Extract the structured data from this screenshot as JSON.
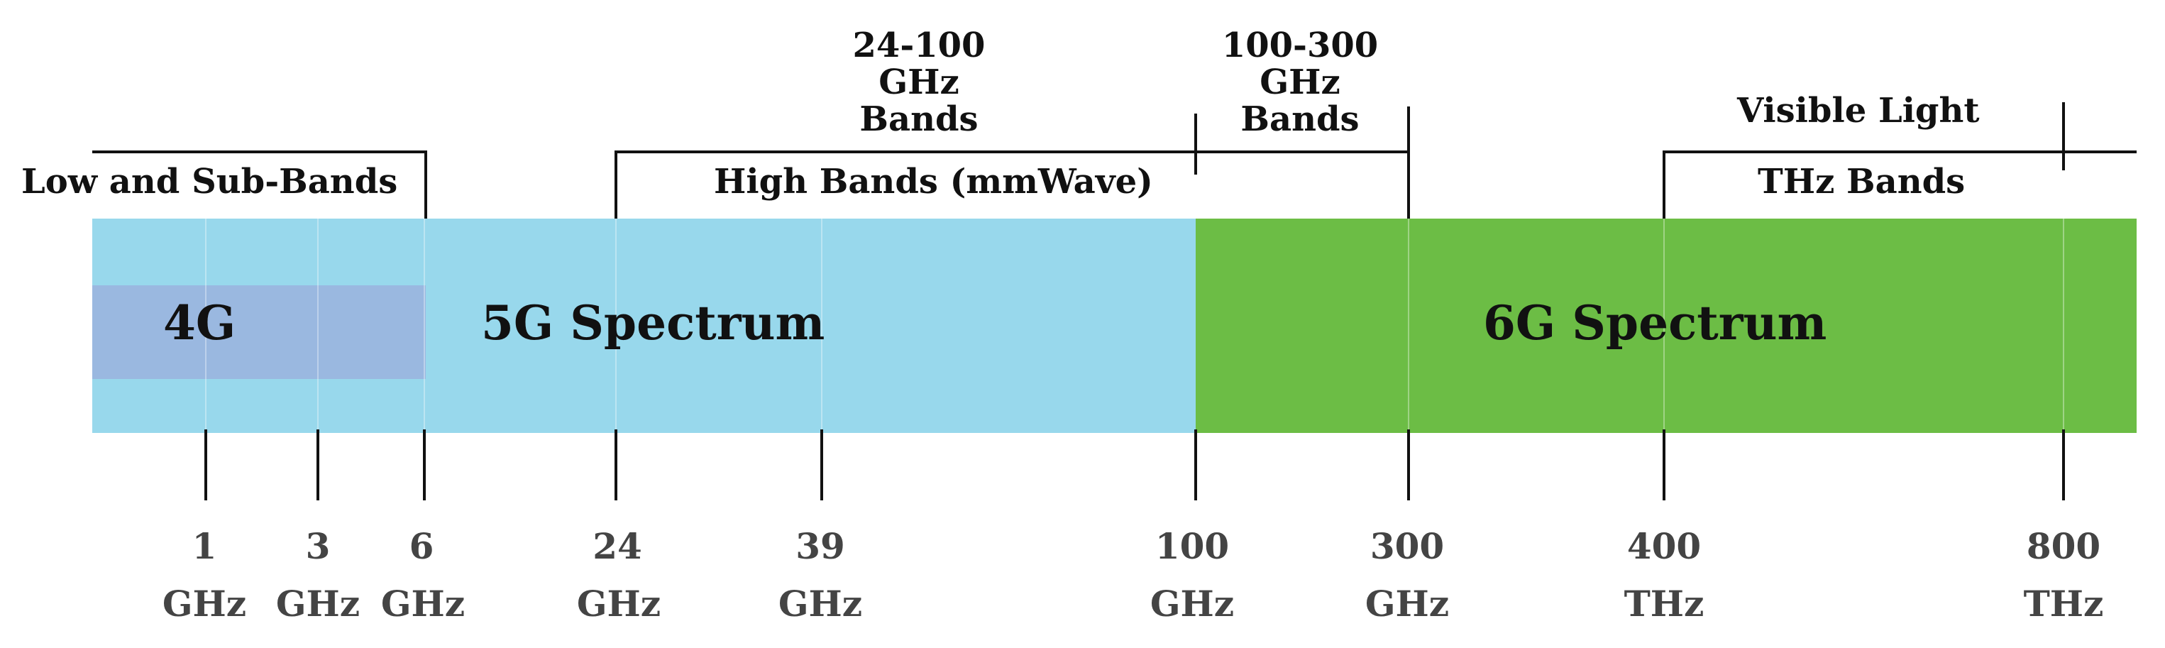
{
  "colors": {
    "five_g": "#98d8ec",
    "four_g": "#9ab8e0",
    "six_g": "#6cbd45",
    "text": "#111111",
    "tick_text": "#444444"
  },
  "spectrum": {
    "four_g": "4G",
    "five_g": "5G Spectrum",
    "six_g": "6G Spectrum"
  },
  "brackets": {
    "low": "Low and Sub-Bands",
    "high": "High Bands (mmWave)",
    "thz": "THz Bands",
    "band_24_100": [
      "24-100",
      "GHz",
      "Bands"
    ],
    "band_100_300": [
      "100-300",
      "GHz",
      "Bands"
    ],
    "visible": "Visible Light"
  },
  "ticks": [
    {
      "value": "1",
      "unit": "GHz"
    },
    {
      "value": "3",
      "unit": "GHz"
    },
    {
      "value": "6",
      "unit": "GHz"
    },
    {
      "value": "24",
      "unit": "GHz"
    },
    {
      "value": "39",
      "unit": "GHz"
    },
    {
      "value": "100",
      "unit": "GHz"
    },
    {
      "value": "300",
      "unit": "GHz"
    },
    {
      "value": "400",
      "unit": "THz"
    },
    {
      "value": "800",
      "unit": "THz"
    }
  ]
}
